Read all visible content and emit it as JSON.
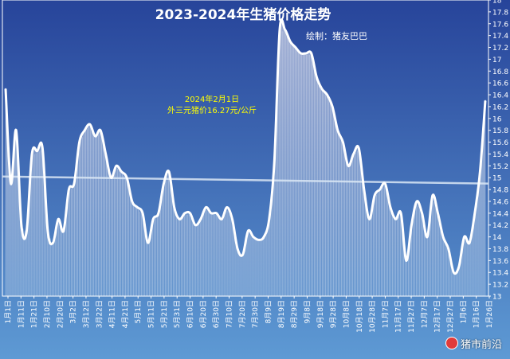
{
  "chart_data": {
    "type": "area",
    "title": "2023-2024年生猪价格走势",
    "subtitle": "绘制：猪友巴巴",
    "annotation": {
      "lines": [
        "2024年2月1日",
        "外三元猪价16.27元/公斤"
      ],
      "color": "#ffff00"
    },
    "ylim": [
      13,
      18
    ],
    "yticks": [
      "13",
      "13.2",
      "13.4",
      "13.6",
      "13.8",
      "14",
      "14.2",
      "14.4",
      "14.6",
      "14.8",
      "15",
      "15.2",
      "15.4",
      "15.6",
      "15.8",
      "16",
      "16.2",
      "16.4",
      "16.6",
      "16.8",
      "17",
      "17.2",
      "17.4",
      "17.6",
      "17.8",
      "18"
    ],
    "xticks": [
      "1月1日",
      "1月11日",
      "1月21日",
      "2月10日",
      "2月20日",
      "3月2日",
      "3月12日",
      "3月22日",
      "4月11日",
      "4月21日",
      "5月1日",
      "5月11日",
      "5月21日",
      "5月31日",
      "6月10日",
      "6月20日",
      "6月30日",
      "7月10日",
      "7月20日",
      "7月30日",
      "8月9日",
      "8月19日",
      "8月29日",
      "9月8日",
      "9月18日",
      "9月28日",
      "10月8日",
      "10月18日",
      "10月28日",
      "11月7日",
      "11月17日",
      "11月27日",
      "12月7日",
      "12月17日",
      "12月27日",
      "1月6日",
      "1月16日",
      "1月26日"
    ],
    "series": [
      {
        "values": [
          16.5,
          14.9,
          15.8,
          14.2,
          14.1,
          15.4,
          15.45,
          15.5,
          14.1,
          13.9,
          14.3,
          14.1,
          14.8,
          14.9,
          15.6,
          15.8,
          15.9,
          15.7,
          15.8,
          15.4,
          15.0,
          15.2,
          15.1,
          15.0,
          14.6,
          14.5,
          14.4,
          13.9,
          14.3,
          14.4,
          14.9,
          15.1,
          14.5,
          14.3,
          14.4,
          14.4,
          14.2,
          14.3,
          14.5,
          14.4,
          14.4,
          14.3,
          14.5,
          14.3,
          13.8,
          13.7,
          14.1,
          14.0,
          13.95,
          14.0,
          14.3,
          15.3,
          17.5,
          17.5,
          17.3,
          17.2,
          17.1,
          17.1,
          17.1,
          16.7,
          16.5,
          16.4,
          16.2,
          15.8,
          15.6,
          15.2,
          15.4,
          15.5,
          14.8,
          14.3,
          14.7,
          14.8,
          14.9,
          14.5,
          14.3,
          14.4,
          13.6,
          14.2,
          14.6,
          14.4,
          14.0,
          14.7,
          14.4,
          14.0,
          13.8,
          13.4,
          13.5,
          14.0,
          13.9,
          14.4,
          15.1,
          16.3
        ]
      }
    ],
    "trendline": {
      "start": 15.02,
      "end": 14.9
    },
    "colors": {
      "background_top": "#27449a",
      "background_bottom": "#5e9ad4",
      "line": "#ffffff",
      "trendline": "#d9e6f5",
      "title": "#ffffff",
      "annotation": "#ffff00"
    },
    "grid": false,
    "legend": "none"
  },
  "watermark": {
    "text": "猪市前沿"
  }
}
